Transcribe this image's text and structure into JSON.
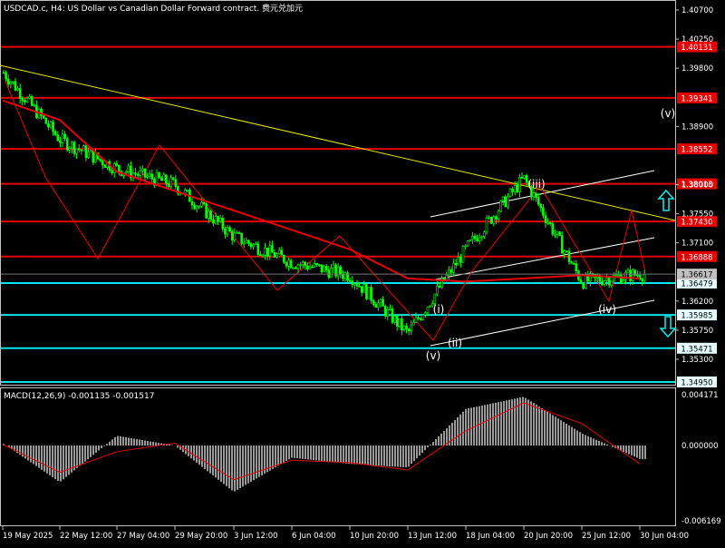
{
  "window": {
    "title": "USDCAD.c, H4:  US Dollar vs Canadian Dollar Forward contract. 费元兑加元"
  },
  "price_panel": {
    "y_ticks": [
      "1.40700",
      "1.39800",
      "1.38900",
      "1.38000",
      "1.37550",
      "1.37100",
      "1.36200",
      "1.35750",
      "1.35300"
    ],
    "extra_ticks": [
      "1.40250"
    ],
    "current_price_label": "1.36617",
    "resistance_levels": [
      {
        "price": 1.40131,
        "label": "1.40131",
        "color": "#e60000"
      },
      {
        "price": 1.39341,
        "label": "1.39341",
        "color": "#e60000"
      },
      {
        "price": 1.38552,
        "label": "1.38552",
        "color": "#e60000"
      },
      {
        "price": 1.38013,
        "label": "1.38013",
        "color": "#e60000"
      },
      {
        "price": 1.3743,
        "label": "1.37430",
        "color": "#e60000"
      },
      {
        "price": 1.36888,
        "label": "1.36888",
        "color": "#e60000"
      }
    ],
    "support_levels": [
      {
        "price": 1.36479,
        "label": "1.36479",
        "color": "#00e5e5"
      },
      {
        "price": 1.35985,
        "label": "1.35985",
        "color": "#00e5e5"
      },
      {
        "price": 1.35471,
        "label": "1.35471",
        "color": "#00e5e5"
      },
      {
        "price": 1.3495,
        "label": "1.34950",
        "color": "#00e5e5"
      }
    ],
    "wave_labels": [
      "(i)",
      "(ii)",
      "(iii)",
      "(iv)",
      "(v)",
      "(v)"
    ],
    "up_arrow_color": "#00e5e5",
    "down_arrow_color": "#00e5e5"
  },
  "macd_panel": {
    "title": "MACD(12,26,9) -0.001135 -0.001517",
    "y_ticks": [
      "0.004171",
      "0.000000",
      "-0.006169"
    ],
    "signal_color": "#e60000",
    "histogram_color": "#c0c0c0"
  },
  "x_axis": {
    "labels": [
      "19 May 2025",
      "22 May 12:00",
      "27 May 04:00",
      "29 May 20:00",
      "3 Jun 12:00",
      "6 Jun 04:00",
      "10 Jun 20:00",
      "13 Jun 12:00",
      "18 Jun 04:00",
      "20 Jun 20:00",
      "25 Jun 12:00",
      "30 Jun 04:00"
    ]
  },
  "chart_data": {
    "type": "line",
    "instrument": "USDCAD.c",
    "timeframe": "H4",
    "x": [
      "19 May 2025",
      "22 May 12:00",
      "27 May 04:00",
      "29 May 20:00",
      "3 Jun 12:00",
      "6 Jun 04:00",
      "10 Jun 20:00",
      "13 Jun 12:00",
      "18 Jun 04:00",
      "20 Jun 20:00",
      "25 Jun 12:00",
      "30 Jun 04:00"
    ],
    "series": [
      {
        "values": [
          1.3975,
          1.387,
          1.3825,
          1.38,
          1.372,
          1.368,
          1.366,
          1.357,
          1.37,
          1.381,
          1.365,
          1.3662
        ]
      },
      {
        "values": [
          1.393,
          1.39,
          1.382,
          1.379,
          1.376,
          1.373,
          1.37,
          1.3655,
          1.365,
          1.3655,
          1.366,
          1.3655
        ]
      }
    ],
    "ylim": [
      1.3475,
      1.4088
    ],
    "macd": {
      "histogram": [
        0.0002,
        -0.003,
        0.0008,
        0.0,
        -0.0038,
        -0.001,
        -0.0015,
        -0.0018,
        0.003,
        0.004,
        0.001,
        -0.0011
      ],
      "signal": [
        0.0001,
        -0.0022,
        -0.0005,
        0.0002,
        -0.0028,
        -0.0012,
        -0.0014,
        -0.002,
        0.0012,
        0.0035,
        0.0018,
        -0.0015
      ],
      "ylim": [
        -0.006169,
        0.004171
      ]
    }
  }
}
